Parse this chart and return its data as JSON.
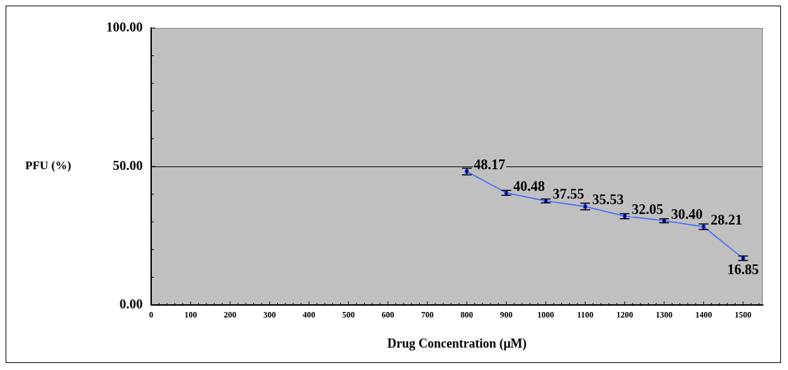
{
  "chart_data": {
    "type": "line",
    "xlabel": "Drug Concentration (μM)",
    "ylabel": "PFU (%)",
    "x": [
      800,
      900,
      1000,
      1100,
      1200,
      1300,
      1400,
      1500
    ],
    "series": [
      {
        "color": "#3366ff",
        "values": [
          48.17,
          40.48,
          37.55,
          35.53,
          32.05,
          30.4,
          28.21,
          16.85
        ],
        "errors": [
          1.2,
          0.9,
          0.7,
          1.2,
          0.9,
          0.7,
          1,
          0.8
        ],
        "value_labels": [
          "48.17",
          "40.48",
          "37.55",
          "35.53",
          "32.05",
          "30.40",
          "28.21",
          "16.85"
        ]
      }
    ],
    "marker": "square",
    "line_style": "solid",
    "grid": "y",
    "legend": false,
    "xlim": [
      0,
      1550
    ],
    "xticks": [
      0,
      {
        "value": 20,
        "label": null
      },
      {
        "value": 40,
        "label": null
      },
      {
        "value": 60,
        "label": null
      },
      {
        "value": 80,
        "label": null
      },
      100,
      {
        "value": 120,
        "label": null
      },
      {
        "value": 140,
        "label": null
      },
      {
        "value": 160,
        "label": null
      },
      {
        "value": 180,
        "label": null
      },
      200,
      {
        "value": 220,
        "label": null
      },
      {
        "value": 240,
        "label": null
      },
      {
        "value": 260,
        "label": null
      },
      {
        "value": 280,
        "label": null
      },
      300,
      {
        "value": 320,
        "label": null
      },
      {
        "value": 340,
        "label": null
      },
      {
        "value": 360,
        "label": null
      },
      {
        "value": 380,
        "label": null
      },
      400,
      {
        "value": 420,
        "label": null
      },
      {
        "value": 440,
        "label": null
      },
      {
        "value": 460,
        "label": null
      },
      {
        "value": 480,
        "label": null
      },
      500,
      {
        "value": 520,
        "label": null
      },
      {
        "value": 540,
        "label": null
      },
      {
        "value": 560,
        "label": null
      },
      {
        "value": 580,
        "label": null
      },
      600,
      {
        "value": 620,
        "label": null
      },
      {
        "value": 640,
        "label": null
      },
      {
        "value": 660,
        "label": null
      },
      {
        "value": 680,
        "label": null
      },
      700,
      {
        "value": 720,
        "label": null
      },
      {
        "value": 740,
        "label": null
      },
      {
        "value": 760,
        "label": null
      },
      {
        "value": 780,
        "label": null
      },
      800,
      {
        "value": 820,
        "label": null
      },
      {
        "value": 840,
        "label": null
      },
      {
        "value": 860,
        "label": null
      },
      {
        "value": 880,
        "label": null
      },
      900,
      {
        "value": 920,
        "label": null
      },
      {
        "value": 940,
        "label": null
      },
      {
        "value": 960,
        "label": null
      },
      {
        "value": 980,
        "label": null
      },
      1000,
      {
        "value": 1020,
        "label": null
      },
      {
        "value": 1040,
        "label": null
      },
      {
        "value": 1060,
        "label": null
      },
      {
        "value": 1080,
        "label": null
      },
      1100,
      {
        "value": 1120,
        "label": null
      },
      {
        "value": 1140,
        "label": null
      },
      {
        "value": 1160,
        "label": null
      },
      {
        "value": 1180,
        "label": null
      },
      1200,
      {
        "value": 1220,
        "label": null
      },
      {
        "value": 1240,
        "label": null
      },
      {
        "value": 1260,
        "label": null
      },
      {
        "value": 1280,
        "label": null
      },
      1300,
      {
        "value": 1320,
        "label": null
      },
      {
        "value": 1340,
        "label": null
      },
      {
        "value": 1360,
        "label": null
      },
      {
        "value": 1380,
        "label": null
      },
      1400,
      {
        "value": 1420,
        "label": null
      },
      {
        "value": 1440,
        "label": null
      },
      {
        "value": 1460,
        "label": null
      },
      {
        "value": 1480,
        "label": null
      },
      1500,
      {
        "value": 1520,
        "label": null
      },
      {
        "value": 1540,
        "label": null
      }
    ],
    "ylim": [
      0,
      100
    ],
    "yticks": [
      {
        "value": 0,
        "label": "0.00"
      },
      {
        "value": 10,
        "label": null
      },
      {
        "value": 20,
        "label": null
      },
      {
        "value": 30,
        "label": null
      },
      {
        "value": 40,
        "label": null
      },
      {
        "value": 50,
        "label": "50.00"
      },
      {
        "value": 60,
        "label": null
      },
      {
        "value": 70,
        "label": null
      },
      {
        "value": 80,
        "label": null
      },
      {
        "value": 90,
        "label": null
      },
      {
        "value": 100,
        "label": "100.00"
      }
    ]
  }
}
